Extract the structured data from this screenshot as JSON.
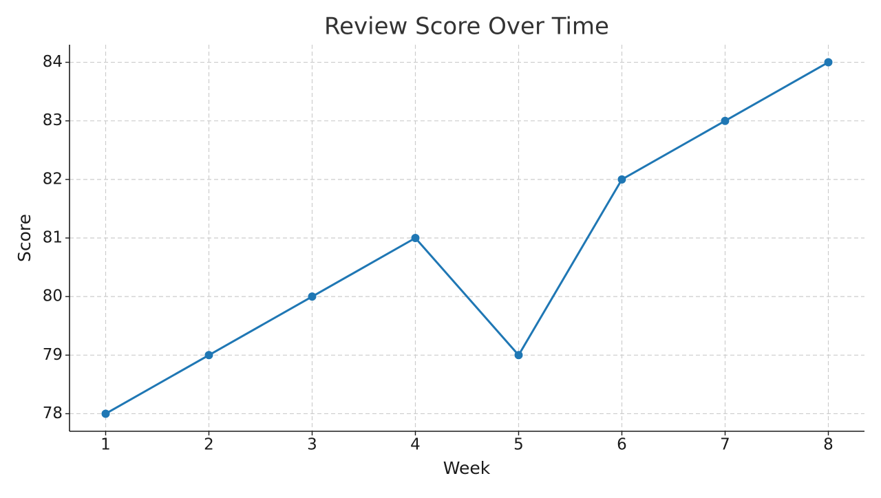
{
  "chart_data": {
    "type": "line",
    "title": "Review Score Over Time",
    "x_label": "Week",
    "y_label": "Score",
    "x": [
      1,
      2,
      3,
      4,
      5,
      6,
      7,
      8
    ],
    "values": [
      78,
      79,
      80,
      81,
      79,
      82,
      83,
      84
    ],
    "color": "#1f77b4",
    "xlim": [
      0.65,
      8.35
    ],
    "xticks": [
      1,
      2,
      3,
      4,
      5,
      6,
      7,
      8
    ],
    "ylim": [
      77.7,
      84.3
    ],
    "yticks": [
      78,
      79,
      80,
      81,
      82,
      83,
      84
    ],
    "grid": true
  }
}
